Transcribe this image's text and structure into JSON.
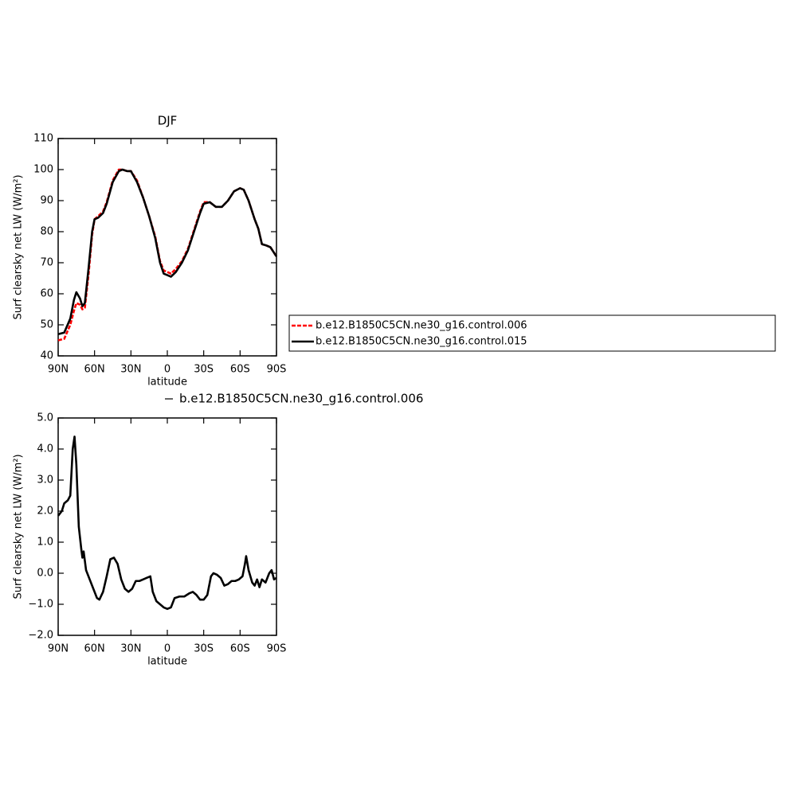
{
  "chart_data": [
    {
      "type": "line",
      "title": "DJF",
      "x_label": "latitude",
      "y_label": "Surf clearsky net LW (W/m²)",
      "x": [
        90,
        85,
        80,
        77,
        75,
        72,
        70,
        68,
        65,
        62,
        60,
        57,
        53,
        50,
        45,
        40,
        37,
        33,
        30,
        25,
        20,
        15,
        10,
        6,
        3,
        0,
        -3,
        -7,
        -12,
        -17,
        -22,
        -27,
        -30,
        -35,
        -40,
        -45,
        -50,
        -55,
        -60,
        -63,
        -67,
        -72,
        -75,
        -78,
        -82,
        -85,
        -90
      ],
      "series": [
        {
          "name": "b.e12.B1850C5CN.ne30_g16.control.006",
          "color": "#ff0000",
          "line_style": "dashed",
          "values": [
            45,
            45.5,
            50,
            54.5,
            57,
            56.5,
            55,
            55.5,
            66,
            79,
            84,
            85,
            86.5,
            89.5,
            96.5,
            100,
            100,
            99.5,
            99.5,
            96.5,
            91,
            85,
            78.5,
            70.5,
            67.5,
            67,
            66.5,
            68,
            70.5,
            74.5,
            80.5,
            86.5,
            89.5,
            89.5,
            88,
            88,
            90,
            93,
            94,
            93.5,
            90,
            84,
            81,
            76,
            75.5,
            75,
            72
          ]
        },
        {
          "name": "b.e12.B1850C5CN.ne30_g16.control.015",
          "color": "#000000",
          "line_style": "solid",
          "values": [
            47,
            47.5,
            52,
            58,
            60.5,
            58.5,
            56,
            57,
            68,
            80,
            84,
            84.5,
            86,
            89,
            96,
            99.5,
            100,
            99.5,
            99.5,
            96,
            91,
            85,
            78,
            70,
            66.5,
            66,
            65.5,
            67,
            70,
            74,
            80,
            86,
            89,
            89.5,
            88,
            88,
            90,
            93,
            94,
            93.5,
            90,
            84,
            81,
            76,
            75.5,
            75,
            72
          ]
        }
      ],
      "xlim": [
        90,
        -90
      ],
      "xticks": [
        {
          "value": 90,
          "label": "90N"
        },
        {
          "value": 60,
          "label": "60N"
        },
        {
          "value": 30,
          "label": "30N"
        },
        0,
        {
          "value": -30,
          "label": "30S"
        },
        {
          "value": -60,
          "label": "60S"
        },
        {
          "value": -90,
          "label": "90S"
        }
      ],
      "ylim": [
        40,
        110
      ],
      "yticks": [
        40,
        50,
        60,
        70,
        80,
        90,
        100,
        110
      ],
      "legend": "right"
    },
    {
      "type": "line",
      "x_label": "latitude",
      "y_label": "Surf clearsky net LW (W/m²)",
      "x": [
        90,
        87,
        85,
        82,
        80,
        78,
        76.5,
        75,
        73,
        71,
        70,
        69,
        67,
        64,
        61,
        58,
        56,
        53,
        50,
        47,
        44,
        41,
        38,
        35,
        32,
        29,
        26,
        23,
        20,
        17,
        14,
        12,
        9,
        6,
        3,
        0,
        -3,
        -6,
        -10,
        -14,
        -18,
        -21,
        -24,
        -27,
        -30,
        -33,
        -36,
        -38,
        -41,
        -44,
        -47,
        -50,
        -53,
        -56,
        -59,
        -62,
        -64,
        -65,
        -67,
        -70,
        -72,
        -74,
        -76,
        -78,
        -81,
        -84,
        -86,
        -88,
        -90
      ],
      "series": [
        {
          "name": "b.e12.B1850C5CN.ne30_g16.control.006",
          "color": "#000000",
          "line_style": "solid",
          "values": [
            1.85,
            2.0,
            2.25,
            2.35,
            2.5,
            4.0,
            4.4,
            3.5,
            1.5,
            0.8,
            0.5,
            0.7,
            0.1,
            -0.2,
            -0.5,
            -0.8,
            -0.85,
            -0.6,
            -0.1,
            0.45,
            0.5,
            0.3,
            -0.2,
            -0.5,
            -0.6,
            -0.5,
            -0.25,
            -0.25,
            -0.2,
            -0.15,
            -0.1,
            -0.6,
            -0.9,
            -1.0,
            -1.1,
            -1.15,
            -1.1,
            -0.8,
            -0.75,
            -0.75,
            -0.65,
            -0.6,
            -0.7,
            -0.85,
            -0.85,
            -0.7,
            -0.1,
            0.0,
            -0.05,
            -0.15,
            -0.4,
            -0.35,
            -0.25,
            -0.25,
            -0.2,
            -0.1,
            0.3,
            0.55,
            0.1,
            -0.3,
            -0.4,
            -0.2,
            -0.45,
            -0.2,
            -0.3,
            0.0,
            0.1,
            -0.2,
            -0.15
          ]
        }
      ],
      "xlim": [
        90,
        -90
      ],
      "xticks": [
        {
          "value": 90,
          "label": "90N"
        },
        {
          "value": 60,
          "label": "60N"
        },
        {
          "value": 30,
          "label": "30N"
        },
        0,
        {
          "value": -30,
          "label": "30S"
        },
        {
          "value": -60,
          "label": "60S"
        },
        {
          "value": -90,
          "label": "90S"
        }
      ],
      "ylim": [
        -2,
        5
      ],
      "yticks": [
        {
          "value": -2,
          "label": "−2.0"
        },
        {
          "value": -1,
          "label": "−1.0"
        },
        {
          "value": 0,
          "label": "0.0"
        },
        {
          "value": 1,
          "label": "1.0"
        },
        {
          "value": 2,
          "label": "2.0"
        },
        {
          "value": 3,
          "label": "3.0"
        },
        {
          "value": 4,
          "label": "4.0"
        },
        {
          "value": 5,
          "label": "5.0"
        }
      ],
      "legend": "top"
    }
  ]
}
